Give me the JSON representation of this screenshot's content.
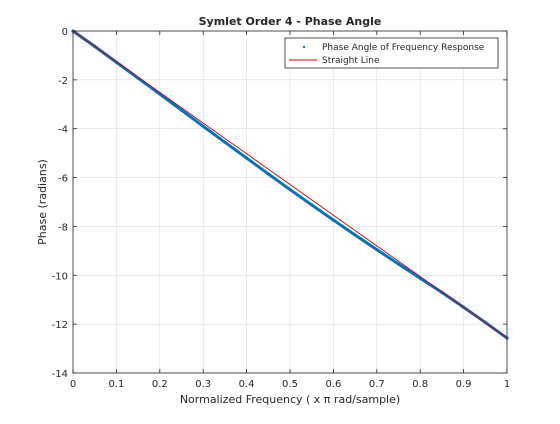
{
  "chart_data": {
    "type": "line",
    "title": "Symlet Order 4 - Phase Angle",
    "xlabel": "Normalized Frequency ( x π rad/sample)",
    "ylabel": "Phase (radians)",
    "xlim": [
      0,
      1
    ],
    "ylim": [
      -14,
      0
    ],
    "xticks": [
      0,
      0.1,
      0.2,
      0.3,
      0.4,
      0.5,
      0.6,
      0.7,
      0.8,
      0.9,
      1
    ],
    "xtick_labels": [
      "0",
      "0.1",
      "0.2",
      "0.3",
      "0.4",
      "0.5",
      "0.6",
      "0.7",
      "0.8",
      "0.9",
      "1"
    ],
    "yticks": [
      0,
      -2,
      -4,
      -6,
      -8,
      -10,
      -12,
      -14
    ],
    "ytick_labels": [
      "0",
      "-2",
      "-4",
      "-6",
      "-8",
      "-10",
      "-12",
      "-14"
    ],
    "grid": true,
    "legend_position": "top-right",
    "series": [
      {
        "name": "Phase Angle of Frequency Response",
        "style": "markers",
        "color": "#0072bd",
        "x": [
          0,
          0.05,
          0.1,
          0.15,
          0.2,
          0.25,
          0.3,
          0.35,
          0.4,
          0.45,
          0.5,
          0.55,
          0.6,
          0.65,
          0.7,
          0.75,
          0.8,
          0.85,
          0.9,
          0.95,
          1
        ],
        "y": [
          0,
          -0.63,
          -1.28,
          -1.93,
          -2.58,
          -3.24,
          -3.9,
          -4.55,
          -5.2,
          -5.85,
          -6.49,
          -7.12,
          -7.74,
          -8.35,
          -8.95,
          -9.54,
          -10.12,
          -10.7,
          -11.31,
          -11.93,
          -12.57
        ]
      },
      {
        "name": "Straight Line",
        "style": "line",
        "color": "#d00000",
        "x": [
          0,
          1
        ],
        "y": [
          0,
          -12.566
        ]
      }
    ]
  }
}
